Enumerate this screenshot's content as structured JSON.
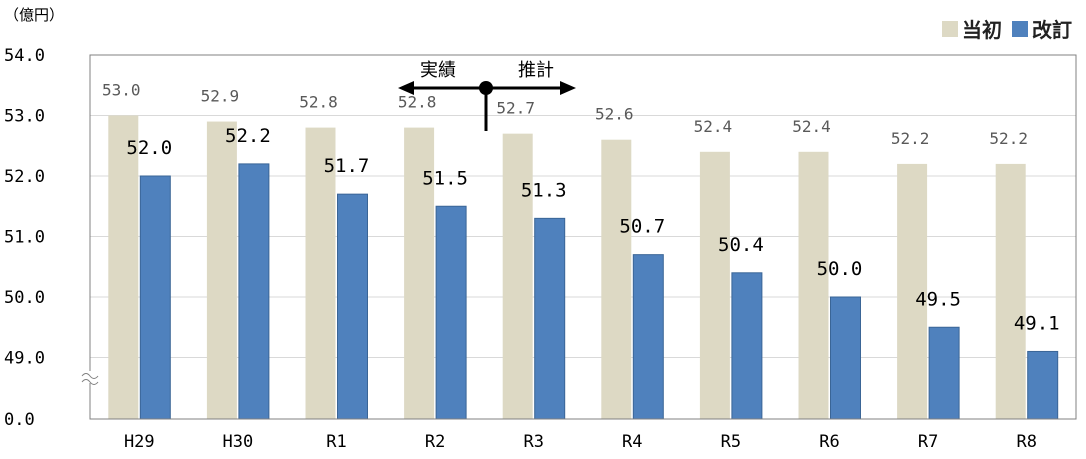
{
  "unit_label": "（億円）",
  "legend": {
    "position": "top-right"
  },
  "annotations": {
    "actual": "実績",
    "estimate": "推計"
  },
  "colors": {
    "initial": "#DDD9C4",
    "revised": "#4F81BD",
    "axis": "#808080",
    "text": "#000000"
  },
  "chart_data": {
    "type": "bar",
    "categories": [
      "H29",
      "H30",
      "R1",
      "R2",
      "R3",
      "R4",
      "R5",
      "R6",
      "R7",
      "R8"
    ],
    "series": [
      {
        "name": "当初",
        "values": [
          53.0,
          52.9,
          52.8,
          52.8,
          52.7,
          52.6,
          52.4,
          52.4,
          52.2,
          52.2
        ],
        "labels": [
          "53.0",
          "52.9",
          "52.8",
          "52.8",
          "52.7",
          "52.6",
          "52.4",
          "52.4",
          "52.2",
          "52.2"
        ]
      },
      {
        "name": "改訂",
        "values": [
          52.0,
          52.2,
          51.7,
          51.5,
          51.3,
          50.7,
          50.4,
          50.0,
          49.5,
          49.1
        ],
        "labels": [
          "52.0",
          "52.2",
          "51.7",
          "51.5",
          "51.3",
          "50.7",
          "50.4",
          "50.0",
          "49.5",
          "49.1"
        ]
      }
    ],
    "y_ticks": [
      "0.0",
      "49.0",
      "50.0",
      "51.0",
      "52.0",
      "53.0",
      "54.0"
    ],
    "ylim": [
      48.0,
      54.0
    ],
    "axis_break": true,
    "grid": true
  }
}
